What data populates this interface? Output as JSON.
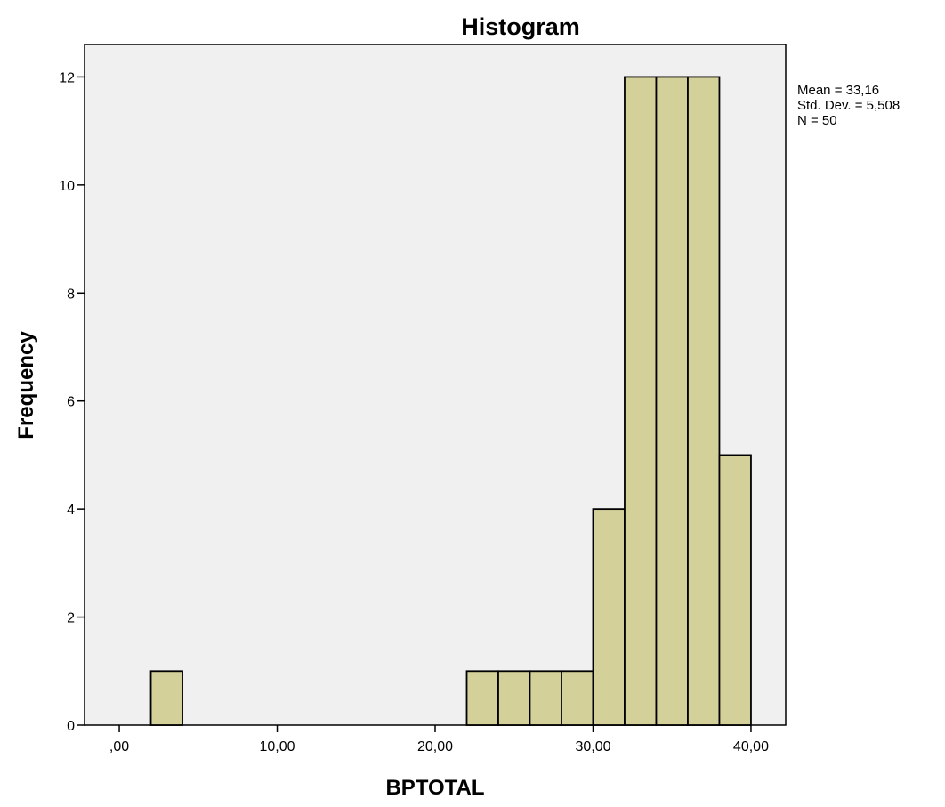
{
  "chart_data": {
    "type": "bar",
    "title": "Histogram",
    "xlabel": "BPTOTAL",
    "ylabel": "Frequency",
    "xlim": [
      -2.2,
      42.2
    ],
    "ylim": [
      0,
      12.6
    ],
    "bin_width": 2,
    "x_ticks": [
      {
        "value": 0,
        "label": ",00"
      },
      {
        "value": 10,
        "label": "10,00"
      },
      {
        "value": 20,
        "label": "20,00"
      },
      {
        "value": 30,
        "label": "30,00"
      },
      {
        "value": 40,
        "label": "40,00"
      }
    ],
    "y_ticks": [
      {
        "value": 0,
        "label": "0"
      },
      {
        "value": 2,
        "label": "2"
      },
      {
        "value": 4,
        "label": "4"
      },
      {
        "value": 6,
        "label": "6"
      },
      {
        "value": 8,
        "label": "8"
      },
      {
        "value": 10,
        "label": "10"
      },
      {
        "value": 12,
        "label": "12"
      }
    ],
    "bins": [
      {
        "start": 2,
        "end": 4,
        "count": 1
      },
      {
        "start": 22,
        "end": 24,
        "count": 1
      },
      {
        "start": 24,
        "end": 26,
        "count": 1
      },
      {
        "start": 26,
        "end": 28,
        "count": 1
      },
      {
        "start": 28,
        "end": 30,
        "count": 1
      },
      {
        "start": 30,
        "end": 32,
        "count": 4
      },
      {
        "start": 32,
        "end": 34,
        "count": 12
      },
      {
        "start": 34,
        "end": 36,
        "count": 12
      },
      {
        "start": 36,
        "end": 38,
        "count": 12
      },
      {
        "start": 38,
        "end": 40,
        "count": 5
      }
    ],
    "stats": {
      "mean": "Mean = 33,16",
      "std_dev": "Std. Dev. = 5,508",
      "n": "N = 50"
    },
    "grid": false,
    "colors": {
      "plot_background": "#f0f0f0",
      "bar_fill": "#d4d09a",
      "bar_stroke": "#000000"
    }
  }
}
